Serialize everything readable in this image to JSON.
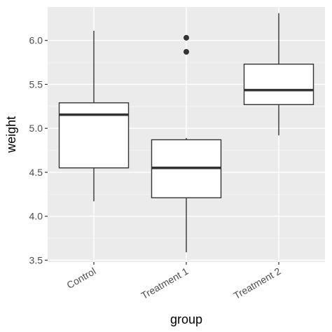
{
  "chart_data": {
    "type": "boxplot",
    "xlabel": "group",
    "ylabel": "weight",
    "categories": [
      "Control",
      "Treatment 1",
      "Treatment 2"
    ],
    "ylim": [
      3.48,
      6.38
    ],
    "yticks": [
      3.5,
      4.0,
      4.5,
      5.0,
      5.5,
      6.0
    ],
    "ytick_labels": [
      "3.5",
      "4.0",
      "4.5",
      "5.0",
      "5.5",
      "6.0"
    ],
    "boxes": [
      {
        "category": "Control",
        "whisker_low": 4.17,
        "q1": 4.55,
        "median": 5.155,
        "q3": 5.29,
        "whisker_high": 6.11,
        "outliers": []
      },
      {
        "category": "Treatment 1",
        "whisker_low": 3.59,
        "q1": 4.21,
        "median": 4.55,
        "q3": 4.87,
        "whisker_high": 4.89,
        "outliers": [
          5.87,
          6.03
        ]
      },
      {
        "category": "Treatment 2",
        "whisker_low": 4.92,
        "q1": 5.27,
        "median": 5.435,
        "q3": 5.73,
        "whisker_high": 6.31,
        "outliers": []
      }
    ],
    "grid": true,
    "legend": "none",
    "colors": {
      "panel_background": "#ebebeb",
      "grid_major": "#ffffff",
      "grid_minor": "#f5f5f5",
      "box_fill": "#ffffff",
      "box_stroke": "#333333",
      "median_stroke": "#333333",
      "outlier_fill": "#333333",
      "tick_mark": "#333333",
      "tick_label": "#4d4d4d",
      "axis_title": "#000000"
    }
  }
}
